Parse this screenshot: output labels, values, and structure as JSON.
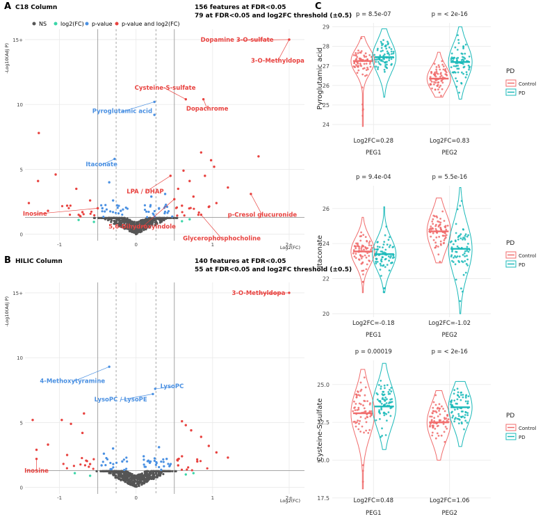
{
  "colors": {
    "ns": "#555555",
    "log2fc": "#3ad6a8",
    "pvalue": "#4a90e2",
    "both": "#e8423f",
    "control": "#f06b6b",
    "pd": "#18b8b8",
    "grid": "#e9e9e9",
    "ref": "#9a9a9a"
  },
  "panels": {
    "A": {
      "letter": "A",
      "column_title": "C18 Column",
      "summary1": "156 features at FDR<0.05",
      "summary2": "79 at FDR<0.05 and log2FC threshold (±0.5)"
    },
    "B": {
      "letter": "B",
      "column_title": "HILIC Column",
      "summary1": "140 features at FDR<0.05",
      "summary2": "55 at FDR<0.05 and log2FC threshold (±0.5)"
    },
    "C": {
      "letter": "C"
    }
  },
  "legend": {
    "ns": "NS",
    "log2fc": "log2(FC)",
    "pvalue": "p-value",
    "both": "p-value and log2(FC)"
  },
  "violin_legend": {
    "title": "PD",
    "control": "Control",
    "pd": "PD"
  },
  "chart_data": [
    {
      "id": "volcano-c18",
      "type": "scatter",
      "title": "C18 Column",
      "xlabel": "Log2(FC)",
      "ylabel": "-Log10(Adj P)",
      "xlim": [
        -1.45,
        2.2
      ],
      "ylim": [
        -0.5,
        15.8
      ],
      "x_ticks": [
        -1,
        0,
        1,
        2
      ],
      "x_tick_labels": [
        "-1",
        "0",
        "1",
        "2+"
      ],
      "y_ticks": [
        0,
        5,
        10,
        15
      ],
      "y_tick_labels": [
        "0",
        "5",
        "10",
        "15+"
      ],
      "p_threshold": 1.3,
      "fc_solid": [
        -0.5,
        0.5
      ],
      "fc_dashed": [
        -0.26,
        0.26
      ],
      "points": [
        {
          "label": "Dopamine 3-O-sulfate",
          "x": 2.0,
          "y": 15.0,
          "group": "both"
        },
        {
          "label": "3-O-Methyldopa",
          "x": 2.0,
          "y": 15.0,
          "group": "both"
        },
        {
          "label": "Cysteine-S-sulfate",
          "x": 0.65,
          "y": 10.4,
          "group": "both"
        },
        {
          "label": "Dopachrome",
          "x": 0.88,
          "y": 10.4,
          "group": "both"
        },
        {
          "label": "Pyroglutamic acid",
          "x": 0.24,
          "y": 10.2,
          "group": "pvalue"
        },
        {
          "label": "Itaconate",
          "x": -0.28,
          "y": 5.8,
          "group": "pvalue"
        },
        {
          "label": "LPA / DHAP",
          "x": 0.45,
          "y": 4.5,
          "group": "both"
        },
        {
          "label": "p-Cresol glucuronide",
          "x": 1.5,
          "y": 3.1,
          "group": "both"
        },
        {
          "label": "5,6-Dihydroxyindole",
          "x": 0.5,
          "y": 2.7,
          "group": "both"
        },
        {
          "label": "Inosine",
          "x": -0.5,
          "y": 2.0,
          "group": "both"
        },
        {
          "label": "Glycerophosphocholine",
          "x": 0.85,
          "y": 1.5,
          "group": "both"
        },
        {
          "label": "",
          "x": 0.24,
          "y": 9.2,
          "group": "pvalue"
        },
        {
          "label": "",
          "x": -1.27,
          "y": 7.8,
          "group": "both"
        },
        {
          "label": "",
          "x": 1.6,
          "y": 6.0,
          "group": "both"
        },
        {
          "label": "",
          "x": 0.98,
          "y": 5.7,
          "group": "both"
        },
        {
          "label": "",
          "x": 1.02,
          "y": 5.2,
          "group": "both"
        },
        {
          "label": "",
          "x": 0.85,
          "y": 6.3,
          "group": "both"
        },
        {
          "label": "",
          "x": -1.05,
          "y": 4.6,
          "group": "both"
        },
        {
          "label": "",
          "x": -1.28,
          "y": 4.1,
          "group": "both"
        },
        {
          "label": "",
          "x": 0.62,
          "y": 4.9,
          "group": "both"
        },
        {
          "label": "",
          "x": 0.7,
          "y": 4.1,
          "group": "both"
        },
        {
          "label": "",
          "x": 0.9,
          "y": 4.5,
          "group": "both"
        },
        {
          "label": "",
          "x": -0.78,
          "y": 3.5,
          "group": "both"
        },
        {
          "label": "",
          "x": 1.2,
          "y": 3.6,
          "group": "both"
        },
        {
          "label": "",
          "x": -1.4,
          "y": 2.4,
          "group": "both"
        },
        {
          "label": "",
          "x": 0.55,
          "y": 3.5,
          "group": "both"
        },
        {
          "label": "",
          "x": -0.6,
          "y": 2.6,
          "group": "both"
        },
        {
          "label": "",
          "x": 0.75,
          "y": 2.9,
          "group": "both"
        },
        {
          "label": "",
          "x": 1.05,
          "y": 2.4,
          "group": "both"
        },
        {
          "label": "",
          "x": -0.9,
          "y": 2.2,
          "group": "both"
        },
        {
          "label": "",
          "x": -1.15,
          "y": 1.8,
          "group": "both"
        },
        {
          "label": "",
          "x": 0.6,
          "y": 2.2,
          "group": "both"
        },
        {
          "label": "",
          "x": 0.95,
          "y": 2.1,
          "group": "both"
        },
        {
          "label": "",
          "x": -0.7,
          "y": 1.7,
          "group": "both"
        },
        {
          "label": "",
          "x": -0.35,
          "y": 4.0,
          "group": "pvalue"
        },
        {
          "label": "",
          "x": -0.3,
          "y": 2.6,
          "group": "pvalue"
        },
        {
          "label": "",
          "x": 0.2,
          "y": 2.9,
          "group": "pvalue"
        },
        {
          "label": "",
          "x": 0.38,
          "y": 3.1,
          "group": "pvalue"
        },
        {
          "label": "",
          "x": -0.44,
          "y": 2.0,
          "group": "pvalue"
        },
        {
          "label": "",
          "x": 0.3,
          "y": 2.0,
          "group": "pvalue"
        },
        {
          "label": "",
          "x": -0.2,
          "y": 1.8,
          "group": "pvalue"
        },
        {
          "label": "",
          "x": -0.55,
          "y": 0.95,
          "group": "log2fc"
        },
        {
          "label": "",
          "x": -0.75,
          "y": 1.1,
          "group": "log2fc"
        },
        {
          "label": "",
          "x": 0.6,
          "y": 1.0,
          "group": "log2fc"
        },
        {
          "label": "",
          "x": 0.7,
          "y": 1.15,
          "group": "log2fc"
        }
      ],
      "annotations": [
        {
          "text": "Dopamine 3-O-sulfate",
          "x": 1.32,
          "y": 15.0,
          "color": "both"
        },
        {
          "text": "3-O-Methyldopa",
          "x": 1.85,
          "y": 13.4,
          "color": "both"
        },
        {
          "text": "Cysteine-S-sulfate",
          "x": 0.38,
          "y": 11.3,
          "color": "both"
        },
        {
          "text": "Dopachrome",
          "x": 0.93,
          "y": 9.7,
          "color": "both"
        },
        {
          "text": "Pyroglutamic acid",
          "x": -0.18,
          "y": 9.5,
          "color": "pvalue"
        },
        {
          "text": "Itaconate",
          "x": -0.45,
          "y": 5.4,
          "color": "pvalue"
        },
        {
          "text": "LPA / DHAP",
          "x": 0.12,
          "y": 3.3,
          "color": "both"
        },
        {
          "text": "p-Cresol glucuronide",
          "x": 1.65,
          "y": 1.5,
          "color": "both"
        },
        {
          "text": "5,6-Dihydroxyindole",
          "x": 0.08,
          "y": 0.6,
          "color": "both"
        },
        {
          "text": "Inosine",
          "x": -1.32,
          "y": 1.6,
          "color": "both"
        },
        {
          "text": "Glycerophosphocholine",
          "x": 1.12,
          "y": -0.3,
          "color": "both"
        }
      ]
    },
    {
      "id": "volcano-hilic",
      "type": "scatter",
      "title": "HILIC Column",
      "xlabel": "Log2(FC)",
      "ylabel": "-Log10(Adj P)",
      "xlim": [
        -1.45,
        2.2
      ],
      "ylim": [
        -0.5,
        15.8
      ],
      "x_ticks": [
        -1,
        0,
        1,
        2
      ],
      "x_tick_labels": [
        "-1",
        "0",
        "1",
        "2+"
      ],
      "y_ticks": [
        0,
        5,
        10,
        15
      ],
      "y_tick_labels": [
        "0",
        "5",
        "10",
        "15+"
      ],
      "p_threshold": 1.3,
      "fc_solid": [
        -0.5,
        0.5
      ],
      "fc_dashed": [
        -0.26,
        0.26
      ],
      "points": [
        {
          "label": "3-O-Methyldopa",
          "x": 2.0,
          "y": 15.0,
          "group": "both"
        },
        {
          "label": "4-Methoxytyramine",
          "x": -0.35,
          "y": 9.3,
          "group": "pvalue"
        },
        {
          "label": "LysoPC",
          "x": 0.25,
          "y": 7.6,
          "group": "pvalue"
        },
        {
          "label": "LysoPC / LysoPE",
          "x": 0.22,
          "y": 7.2,
          "group": "pvalue"
        },
        {
          "label": "Inosine",
          "x": -1.3,
          "y": 2.2,
          "group": "both"
        },
        {
          "label": "",
          "x": -1.35,
          "y": 5.2,
          "group": "both"
        },
        {
          "label": "",
          "x": -0.97,
          "y": 5.2,
          "group": "both"
        },
        {
          "label": "",
          "x": -0.85,
          "y": 4.9,
          "group": "both"
        },
        {
          "label": "",
          "x": -0.68,
          "y": 5.7,
          "group": "both"
        },
        {
          "label": "",
          "x": -0.7,
          "y": 4.2,
          "group": "both"
        },
        {
          "label": "",
          "x": -1.15,
          "y": 3.3,
          "group": "both"
        },
        {
          "label": "",
          "x": -0.9,
          "y": 2.5,
          "group": "both"
        },
        {
          "label": "",
          "x": -1.3,
          "y": 2.9,
          "group": "both"
        },
        {
          "label": "",
          "x": 0.6,
          "y": 5.1,
          "group": "both"
        },
        {
          "label": "",
          "x": 0.65,
          "y": 4.8,
          "group": "both"
        },
        {
          "label": "",
          "x": 0.85,
          "y": 3.9,
          "group": "both"
        },
        {
          "label": "",
          "x": 0.72,
          "y": 4.4,
          "group": "both"
        },
        {
          "label": "",
          "x": 0.95,
          "y": 3.2,
          "group": "both"
        },
        {
          "label": "",
          "x": 1.05,
          "y": 2.7,
          "group": "both"
        },
        {
          "label": "",
          "x": 0.6,
          "y": 2.4,
          "group": "both"
        },
        {
          "label": "",
          "x": 0.8,
          "y": 2.0,
          "group": "both"
        },
        {
          "label": "",
          "x": -0.6,
          "y": 1.8,
          "group": "both"
        },
        {
          "label": "",
          "x": 0.55,
          "y": 1.7,
          "group": "both"
        },
        {
          "label": "",
          "x": 1.2,
          "y": 2.3,
          "group": "both"
        },
        {
          "label": "",
          "x": -0.3,
          "y": 3.0,
          "group": "pvalue"
        },
        {
          "label": "",
          "x": 0.3,
          "y": 3.1,
          "group": "pvalue"
        },
        {
          "label": "",
          "x": 0.1,
          "y": 2.4,
          "group": "pvalue"
        },
        {
          "label": "",
          "x": -0.18,
          "y": 2.0,
          "group": "pvalue"
        },
        {
          "label": "",
          "x": 0.4,
          "y": 2.2,
          "group": "pvalue"
        },
        {
          "label": "",
          "x": -0.45,
          "y": 1.7,
          "group": "pvalue"
        },
        {
          "label": "",
          "x": 0.18,
          "y": 1.9,
          "group": "pvalue"
        },
        {
          "label": "",
          "x": -0.42,
          "y": 2.6,
          "group": "pvalue"
        },
        {
          "label": "",
          "x": -0.8,
          "y": 1.1,
          "group": "log2fc"
        },
        {
          "label": "",
          "x": -0.6,
          "y": 0.9,
          "group": "log2fc"
        },
        {
          "label": "",
          "x": 0.65,
          "y": 1.0,
          "group": "log2fc"
        },
        {
          "label": "",
          "x": 0.75,
          "y": 1.1,
          "group": "log2fc"
        }
      ],
      "annotations": [
        {
          "text": "3-O-Methyldopa",
          "x": 1.6,
          "y": 15.0,
          "color": "both"
        },
        {
          "text": "4-Methoxytyramine",
          "x": -0.83,
          "y": 8.2,
          "color": "pvalue"
        },
        {
          "text": "LysoPC",
          "x": 0.47,
          "y": 7.8,
          "color": "pvalue"
        },
        {
          "text": "LysoPC / LysoPE",
          "x": -0.2,
          "y": 6.8,
          "color": "pvalue"
        },
        {
          "text": "Inosine",
          "x": -1.3,
          "y": 1.3,
          "color": "both"
        }
      ]
    },
    {
      "id": "violin-pyroglutamic",
      "type": "violin",
      "ylabel": "Pyroglutamic acid",
      "ylim": [
        23.5,
        29.2
      ],
      "y_ticks": [
        24,
        25,
        26,
        27,
        28,
        29
      ],
      "categories": [
        "PEG1",
        "PEG2"
      ],
      "pvalues": [
        "p = 8.5e-07",
        "p = < 2e-16"
      ],
      "fc_labels": [
        "Log2FC=0.28",
        "Log2FC=0.83"
      ],
      "groups": [
        {
          "cat": "PEG1",
          "series": "Control",
          "median": 27.25,
          "q1": 26.9,
          "q3": 27.6,
          "min": 23.9,
          "max": 28.5
        },
        {
          "cat": "PEG1",
          "series": "PD",
          "median": 27.45,
          "q1": 27.0,
          "q3": 27.9,
          "min": 25.4,
          "max": 28.9
        },
        {
          "cat": "PEG2",
          "series": "Control",
          "median": 26.35,
          "q1": 26.0,
          "q3": 26.7,
          "min": 25.4,
          "max": 27.7
        },
        {
          "cat": "PEG2",
          "series": "PD",
          "median": 27.2,
          "q1": 26.7,
          "q3": 27.7,
          "min": 25.3,
          "max": 29.0
        }
      ]
    },
    {
      "id": "violin-itaconate",
      "type": "violin",
      "ylabel": "Itaconate",
      "ylim": [
        19.8,
        27.3
      ],
      "y_ticks": [
        20,
        22,
        24,
        26
      ],
      "categories": [
        "PEG1",
        "PEG2"
      ],
      "pvalues": [
        "p = 9.4e-04",
        "p = 5.5e-16"
      ],
      "fc_labels": [
        "Log2FC=-0.18",
        "Log2FC=-1.02"
      ],
      "groups": [
        {
          "cat": "PEG1",
          "series": "Control",
          "median": 23.55,
          "q1": 23.1,
          "q3": 24.0,
          "min": 21.2,
          "max": 25.5
        },
        {
          "cat": "PEG1",
          "series": "PD",
          "median": 23.4,
          "q1": 22.9,
          "q3": 23.9,
          "min": 21.2,
          "max": 26.1
        },
        {
          "cat": "PEG2",
          "series": "Control",
          "median": 24.7,
          "q1": 24.1,
          "q3": 25.3,
          "min": 22.9,
          "max": 26.6
        },
        {
          "cat": "PEG2",
          "series": "PD",
          "median": 23.7,
          "q1": 22.9,
          "q3": 24.5,
          "min": 20.0,
          "max": 27.2
        }
      ]
    },
    {
      "id": "violin-cysteine",
      "type": "violin",
      "ylabel": "Cysteine-S-sulfate",
      "ylim": [
        17.4,
        26.6
      ],
      "y_ticks": [
        17.5,
        20.0,
        22.5,
        25.0
      ],
      "y_tick_labels": [
        "17.5",
        "20.0",
        "22.5",
        "25.0"
      ],
      "categories": [
        "PEG1",
        "PEG2"
      ],
      "pvalues": [
        "p = 0.00019",
        "p = < 2e-16"
      ],
      "fc_labels": [
        "Log2FC=0.48",
        "Log2FC=1.06"
      ],
      "groups": [
        {
          "cat": "PEG1",
          "series": "Control",
          "median": 23.1,
          "q1": 22.3,
          "q3": 24.0,
          "min": 18.1,
          "max": 26.0
        },
        {
          "cat": "PEG1",
          "series": "PD",
          "median": 23.55,
          "q1": 22.8,
          "q3": 24.4,
          "min": 20.7,
          "max": 26.4
        },
        {
          "cat": "PEG2",
          "series": "Control",
          "median": 22.5,
          "q1": 21.8,
          "q3": 23.2,
          "min": 20.0,
          "max": 24.6
        },
        {
          "cat": "PEG2",
          "series": "PD",
          "median": 23.5,
          "q1": 22.8,
          "q3": 24.2,
          "min": 20.9,
          "max": 25.2
        }
      ]
    }
  ]
}
